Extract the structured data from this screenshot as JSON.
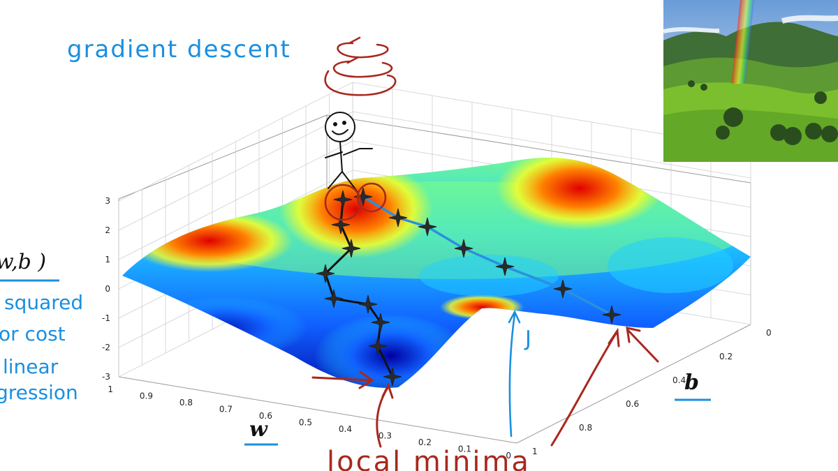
{
  "annotations": {
    "title": "gradient descent",
    "cost_fn": "w,b )",
    "side_note": [
      "squared",
      "or cost",
      "linear",
      "gression"
    ],
    "j_label": "J",
    "minima_label": "local minima",
    "w_label": "w",
    "b_label": "b"
  },
  "chart_data": {
    "type": "surface",
    "title": "",
    "z_ticks": [
      "3",
      "2",
      "1",
      "0",
      "-1",
      "-2",
      "-3"
    ],
    "w_ticks": [
      "1",
      "0.9",
      "0.8",
      "0.7",
      "0.6",
      "0.5",
      "0.4",
      "0.3",
      "0.2",
      "0.1",
      "0"
    ],
    "b_ticks": [
      "0",
      "0.2",
      "0.4",
      "0.6",
      "0.8",
      "1"
    ],
    "zlim": [
      -3,
      3
    ],
    "wlim": [
      0,
      1
    ],
    "blim": [
      0,
      1
    ],
    "colormap": [
      "#0000a0",
      "#1060ff",
      "#20d0ff",
      "#80ff80",
      "#ffff20",
      "#ff8000",
      "#e00000"
    ],
    "paths": [
      {
        "name": "",
        "color": "#111111",
        "points": [
          [
            0.88,
            0.22,
            2.9
          ],
          [
            0.87,
            0.24,
            2.2
          ],
          [
            0.84,
            0.26,
            1.3
          ],
          [
            0.8,
            0.27,
            0.3
          ],
          [
            0.74,
            0.3,
            -0.6
          ],
          [
            0.68,
            0.33,
            -1.3
          ],
          [
            0.6,
            0.36,
            -2.0
          ],
          [
            0.5,
            0.38,
            -2.6
          ],
          [
            0.42,
            0.4,
            -3.0
          ]
        ]
      },
      {
        "name": "",
        "color": "#2a90e0",
        "points": [
          [
            0.82,
            0.2,
            2.9
          ],
          [
            0.76,
            0.26,
            2.3
          ],
          [
            0.7,
            0.3,
            2.0
          ],
          [
            0.6,
            0.4,
            1.2
          ],
          [
            0.48,
            0.52,
            0.5
          ],
          [
            0.36,
            0.64,
            -0.3
          ],
          [
            0.22,
            0.8,
            -1.2
          ]
        ]
      }
    ]
  }
}
